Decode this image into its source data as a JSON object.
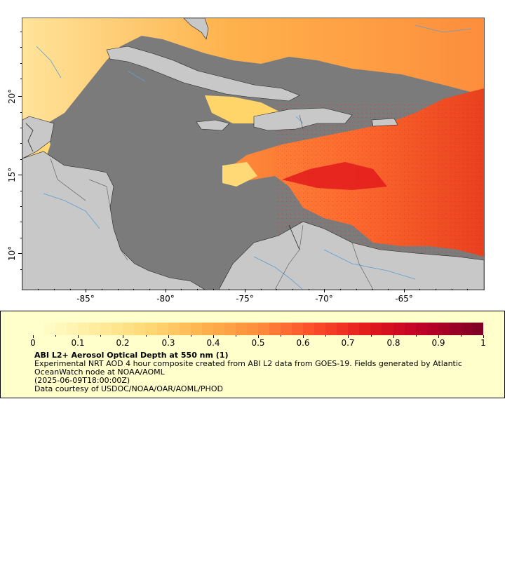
{
  "map": {
    "lat_ticks": [
      "10°",
      "15°",
      "20°"
    ],
    "lon_ticks": [
      "-85°",
      "-80°",
      "-75°",
      "-70°",
      "-65°"
    ],
    "colors": {
      "nodata": "#7b7b7b",
      "land": "#c8c8c8",
      "rivers": "#5f9ed0",
      "borders": "#555555",
      "coast": "#222222"
    },
    "extent": {
      "lon_min": -89,
      "lon_max": -60,
      "lat_min": 8,
      "lat_max": 25
    }
  },
  "legend": {
    "title": "ABI L2+ Aerosol Optical Depth at 550 nm (1)",
    "line1": "Experimental NRT AOD 4 hour composite created from ABI L2 data from GOES-19. Fields generated by Atlantic OceanWatch node at NOAA/AOML",
    "line2": "(2025-06-09T18:00:00Z)",
    "line3": "Data courtesy of USDOC/NOAA/OAR/AOML/PHOD",
    "scale_labels": [
      "0",
      "0.1",
      "0.2",
      "0.3",
      "0.4",
      "0.5",
      "0.6",
      "0.7",
      "0.8",
      "0.9",
      "1"
    ],
    "scale_min": 0,
    "scale_max": 1,
    "palette": [
      "#ffffcc",
      "#ffeda0",
      "#fed976",
      "#feb24c",
      "#fd8d3c",
      "#fc4e2a",
      "#e31a1c",
      "#bd0026",
      "#800026"
    ]
  }
}
